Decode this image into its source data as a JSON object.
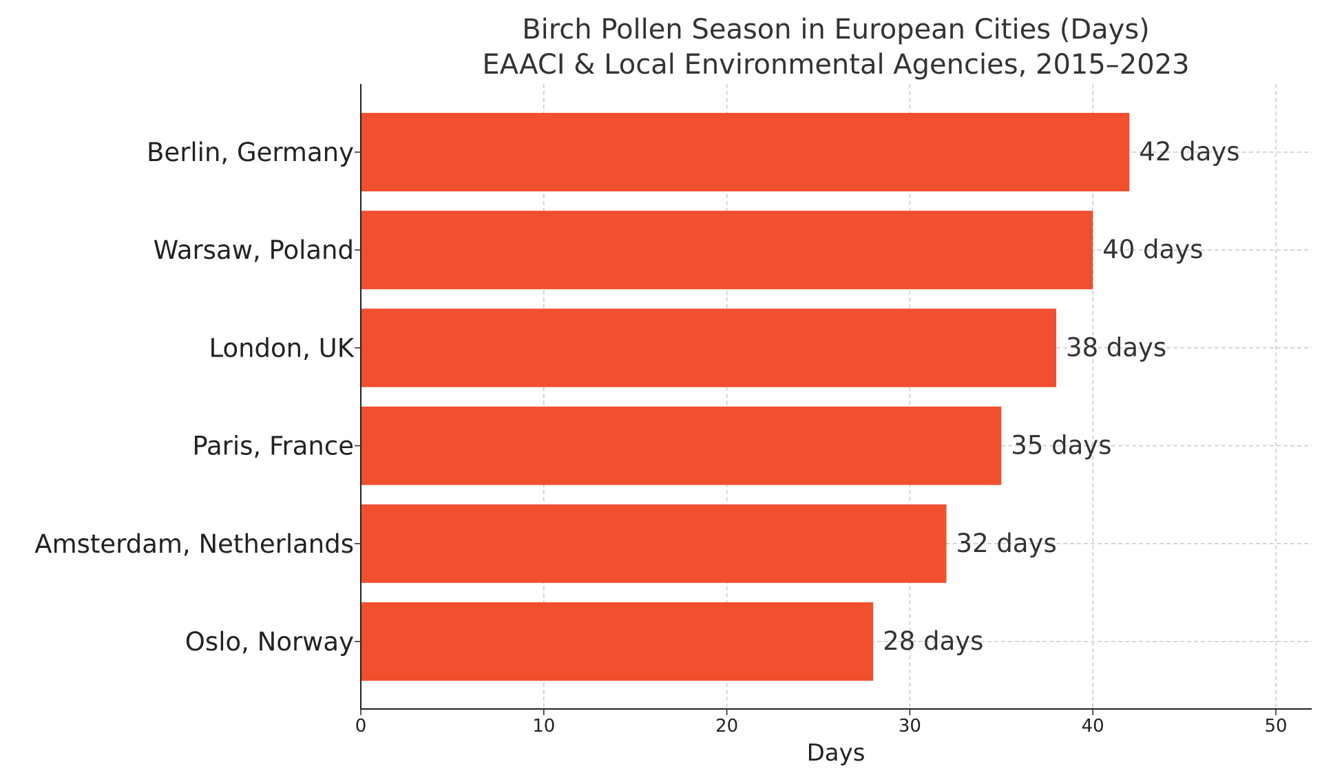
{
  "chart_data": {
    "type": "bar",
    "orientation": "horizontal",
    "title": "Birch Pollen Season in European Cities (Days)",
    "subtitle": "EAACI & Local Environmental Agencies, 2015–2023",
    "xlabel": "Days",
    "ylabel": "",
    "xlim": [
      0,
      52
    ],
    "xticks": [
      0,
      10,
      20,
      30,
      40,
      50
    ],
    "grid": true,
    "bar_color": "#f24f2f",
    "categories": [
      "Berlin, Germany",
      "Warsaw, Poland",
      "London, UK",
      "Paris, France",
      "Amsterdam, Netherlands",
      "Oslo, Norway"
    ],
    "values": [
      42,
      40,
      38,
      35,
      32,
      28
    ],
    "data_labels": [
      "42 days",
      "40 days",
      "38 days",
      "35 days",
      "32 days",
      "28 days"
    ]
  }
}
